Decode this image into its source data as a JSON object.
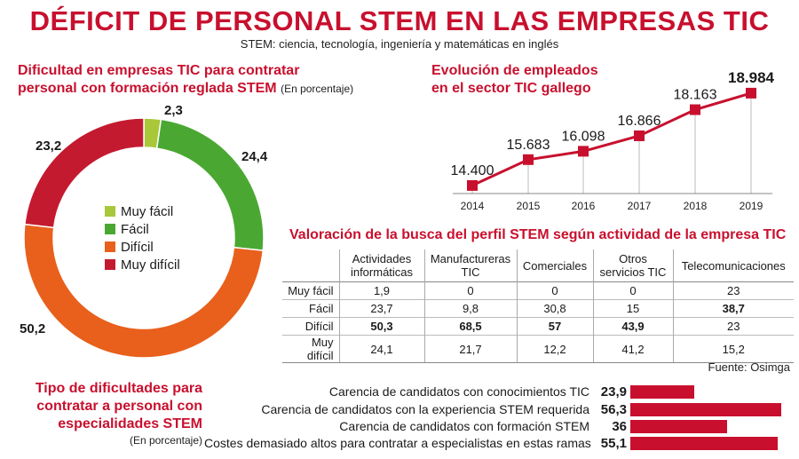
{
  "header": {
    "title": "DÉFICIT DE PERSONAL STEM EN LAS EMPRESAS TIC",
    "subtitle": "STEM: ciencia, tecnología, ingeniería y matemáticas en inglés"
  },
  "colors": {
    "accent": "#c8102e",
    "muy_facil": "#a8c83a",
    "facil": "#4aa832",
    "dificil": "#e8601c",
    "muy_dificil": "#c41a30"
  },
  "source": "Fuente: Osimga",
  "chart_data": [
    {
      "type": "pie",
      "title_line1": "Dificultad en empresas TIC para contratar",
      "title_line2": "personal con formación reglada STEM",
      "unit_note": "(En porcentaje)",
      "categories": [
        "Muy fácil",
        "Fácil",
        "Difícil",
        "Muy difícil"
      ],
      "values": [
        2.3,
        24.4,
        50.2,
        23.2
      ],
      "labels": [
        "2,3",
        "24,4",
        "50,2",
        "23,2"
      ]
    },
    {
      "type": "line",
      "title_line1": "Evolución de empleados",
      "title_line2": "en el sector TIC gallego",
      "x": [
        "2014",
        "2015",
        "2016",
        "2017",
        "2018",
        "2019"
      ],
      "values": [
        14400,
        15683,
        16098,
        16866,
        18163,
        18984
      ],
      "labels": [
        "14.400",
        "15.683",
        "16.098",
        "16.866",
        "18.163",
        "18.984"
      ],
      "grid": false
    },
    {
      "type": "table",
      "title": "Valoración de la busca del perfil STEM según actividad de la empresa TIC",
      "columns": [
        "Actividades informáticas",
        "Manufactureras TIC",
        "Comerciales",
        "Otros servicios TIC",
        "Telecomunicaciones"
      ],
      "rows": [
        {
          "label": "Muy fácil",
          "values": [
            "1,9",
            "0",
            "0",
            "0",
            "23"
          ]
        },
        {
          "label": "Fácil",
          "values": [
            "23,7",
            "9,8",
            "30,8",
            "15",
            "38,7"
          ]
        },
        {
          "label": "Difícil",
          "values": [
            "50,3",
            "68,5",
            "57",
            "43,9",
            "23"
          ]
        },
        {
          "label": "Muy difícil",
          "values": [
            "24,1",
            "21,7",
            "12,2",
            "41,2",
            "15,2"
          ]
        }
      ]
    },
    {
      "type": "bar",
      "orientation": "horizontal",
      "title_line1": "Tipo de dificultades para",
      "title_line2": "contratar a personal con",
      "title_line3": "especialidades STEM",
      "unit_note": "(En porcentaje)",
      "categories": [
        "Carencia de candidatos con conocimientos TIC",
        "Carencia de candidatos con la experiencia STEM requerida",
        "Carencia de candidatos con formación STEM",
        "Costes demasiado altos para contratar a especialistas en estas ramas"
      ],
      "values": [
        23.9,
        56.3,
        36,
        55.1
      ],
      "labels": [
        "23,9",
        "56,3",
        "36",
        "55,1"
      ]
    }
  ]
}
